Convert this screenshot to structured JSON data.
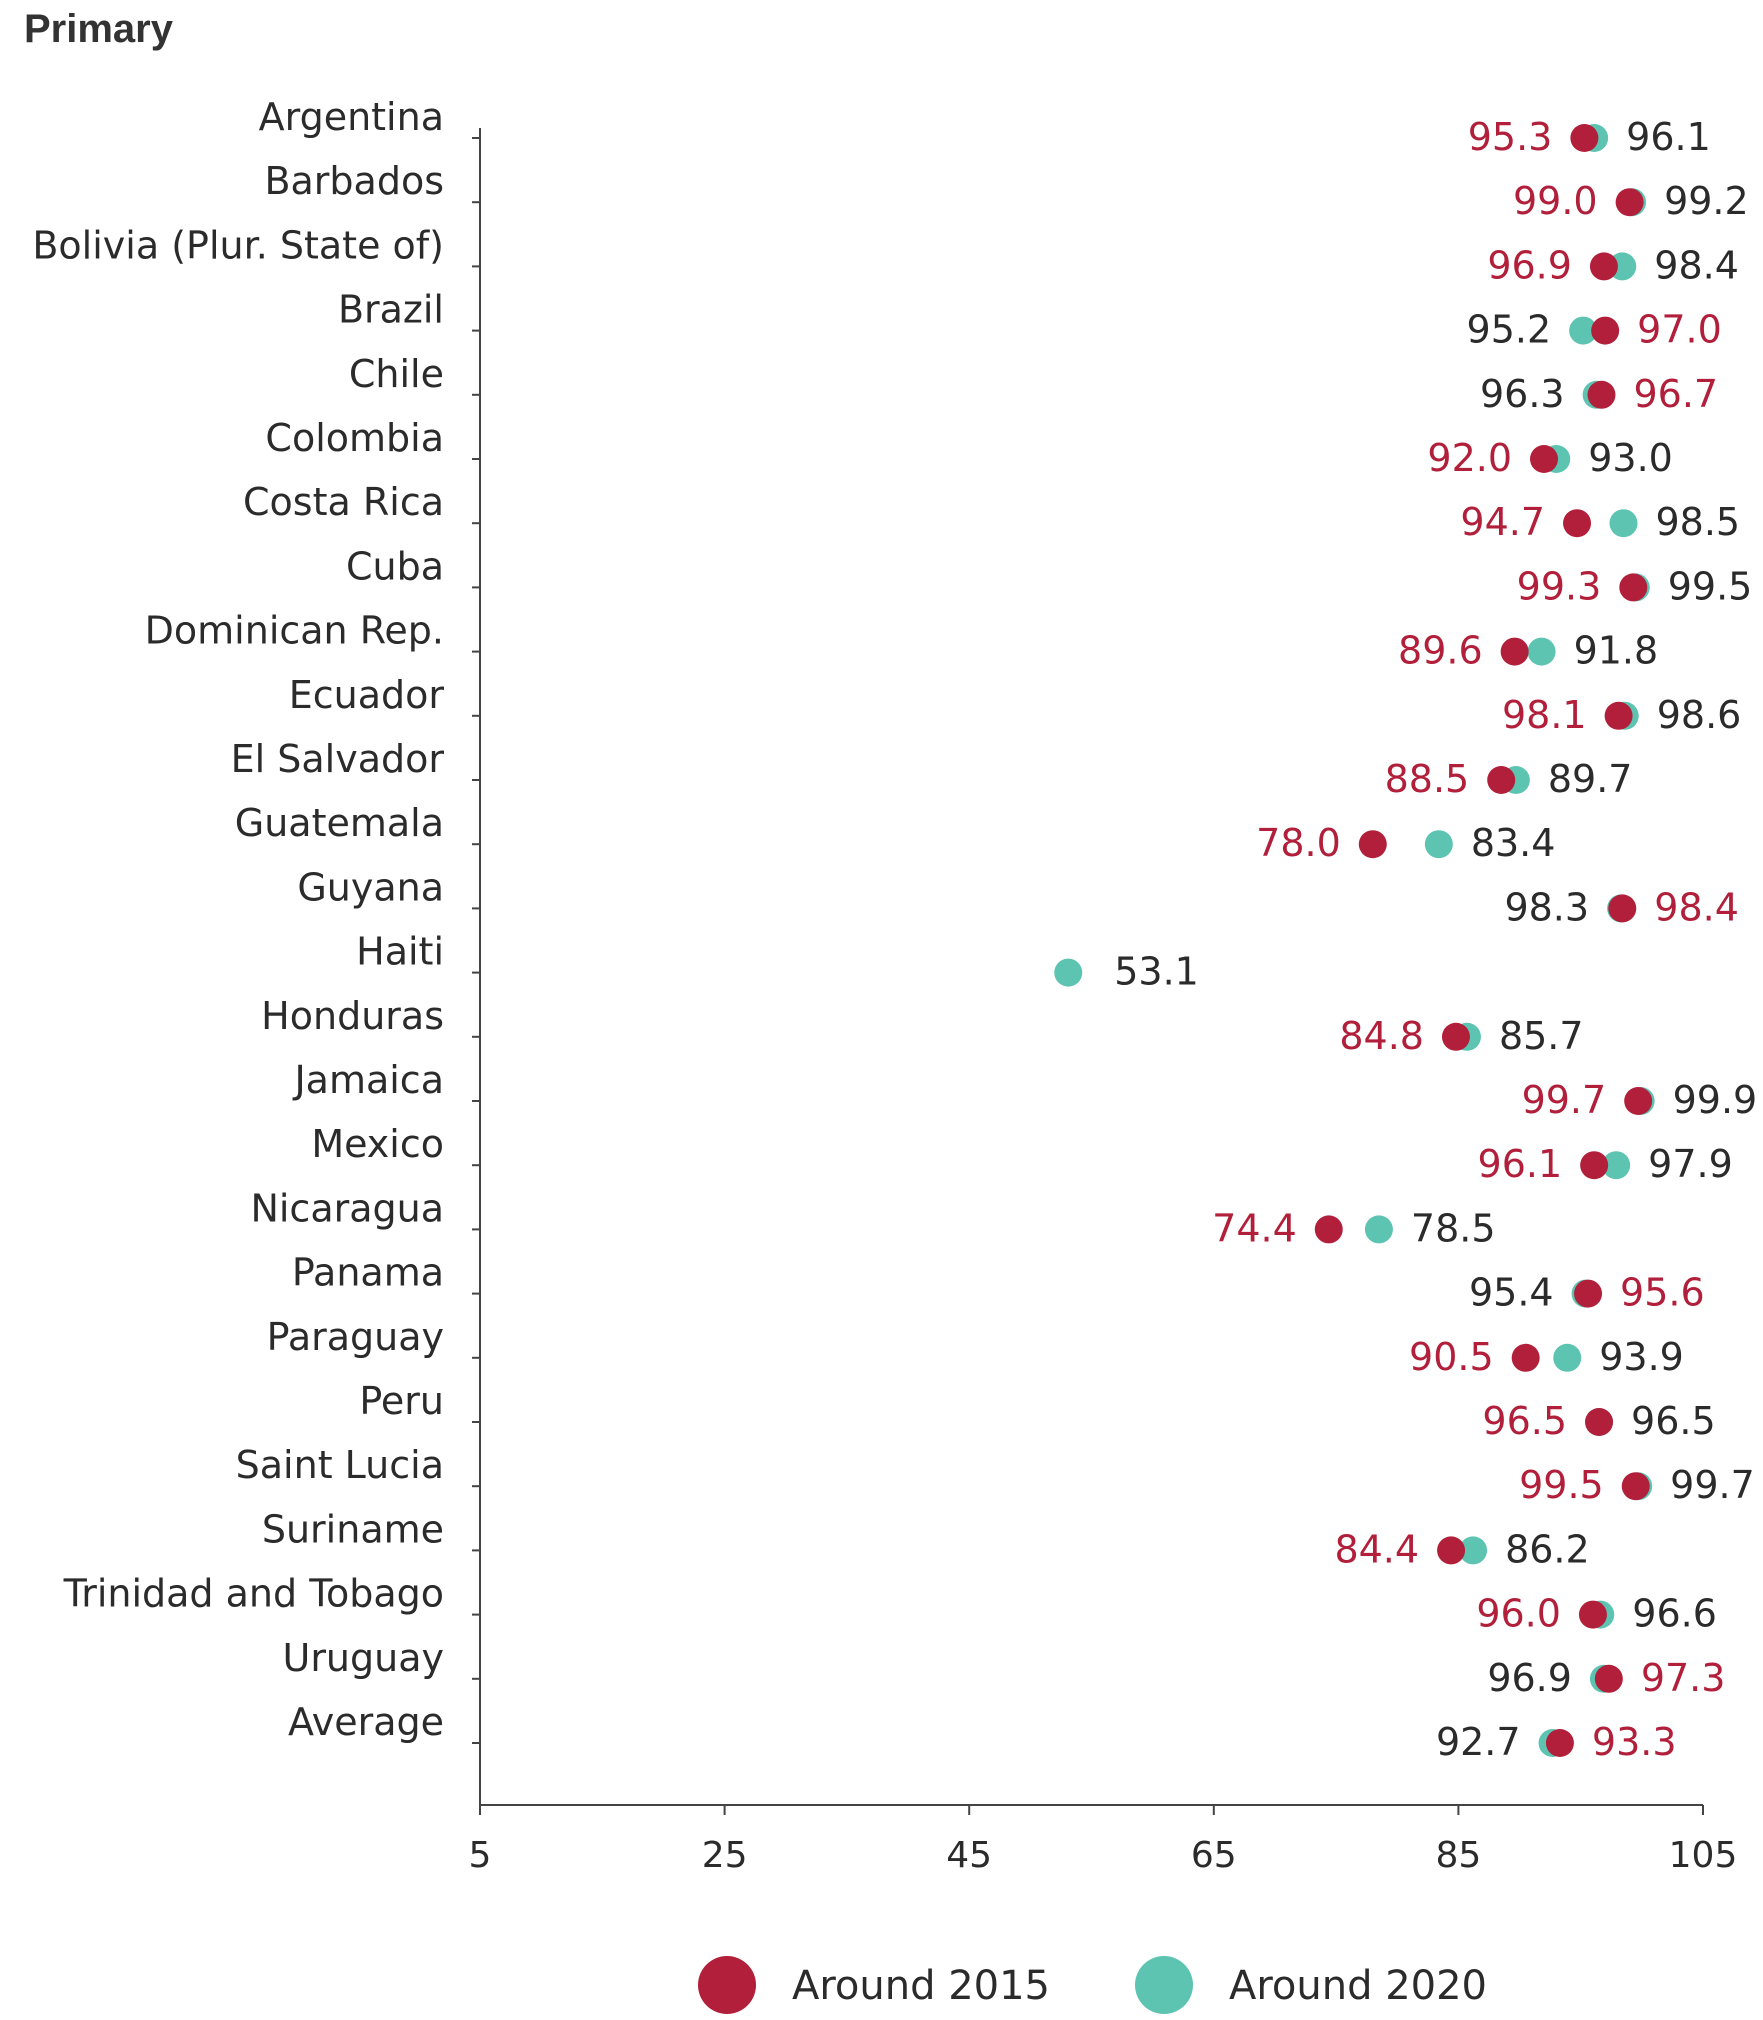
{
  "chart_data": {
    "type": "scatter",
    "title": "Primary",
    "xlim": [
      5,
      105
    ],
    "xticks": [
      "5",
      "25",
      "45",
      "65",
      "85",
      "105"
    ],
    "xtick_values": [
      5,
      25,
      45,
      65,
      85,
      105
    ],
    "series": [
      {
        "name": "Around 2015",
        "color": "#b11f3a"
      },
      {
        "name": "Around 2020",
        "color": "#5cc4b1"
      }
    ],
    "categories": [
      "Argentina",
      "Barbados",
      "Bolivia (Plur. State of)",
      "Brazil",
      "Chile",
      "Colombia",
      "Costa Rica",
      "Cuba",
      "Dominican Rep.",
      "Ecuador",
      "El Salvador",
      "Guatemala",
      "Guyana",
      "Haiti",
      "Honduras",
      "Jamaica",
      "Mexico",
      "Nicaragua",
      "Panama",
      "Paraguay",
      "Peru",
      "Saint Lucia",
      "Suriname",
      "Trinidad and Tobago",
      "Uruguay",
      "Average"
    ],
    "values_2015": [
      95.3,
      99.0,
      96.9,
      97.0,
      96.7,
      92.0,
      94.7,
      99.3,
      89.6,
      98.1,
      88.5,
      78.0,
      98.4,
      null,
      84.8,
      99.7,
      96.1,
      74.4,
      95.6,
      90.5,
      96.5,
      99.5,
      84.4,
      96.0,
      97.3,
      93.3
    ],
    "labels_2015": [
      "95.3",
      "99.0",
      "96.9",
      "97.0",
      "96.7",
      "92.0",
      "94.7",
      "99.3",
      "89.6",
      "98.1",
      "88.5",
      "78.0",
      "98.4",
      null,
      "84.8",
      "99.7",
      "96.1",
      "74.4",
      "95.6",
      "90.5",
      "96.5",
      "99.5",
      "84.4",
      "96.0",
      "97.3",
      "93.3"
    ],
    "values_2020": [
      96.1,
      99.2,
      98.4,
      95.2,
      96.3,
      93.0,
      98.5,
      99.5,
      91.8,
      98.6,
      89.7,
      83.4,
      98.3,
      53.1,
      85.7,
      99.9,
      97.9,
      78.5,
      95.4,
      93.9,
      96.5,
      99.7,
      86.2,
      96.6,
      96.9,
      92.7
    ],
    "labels_2020": [
      "96.1",
      "99.2",
      "98.4",
      "95.2",
      "96.3",
      "93.0",
      "98.5",
      "99.5",
      "91.8",
      "98.6",
      "89.7",
      "83.4",
      "98.3",
      "53.1",
      "85.7",
      "99.9",
      "97.9",
      "78.5",
      "95.4",
      "93.9",
      "96.5",
      "99.7",
      "86.2",
      "96.6",
      "96.9",
      "92.7"
    ]
  }
}
